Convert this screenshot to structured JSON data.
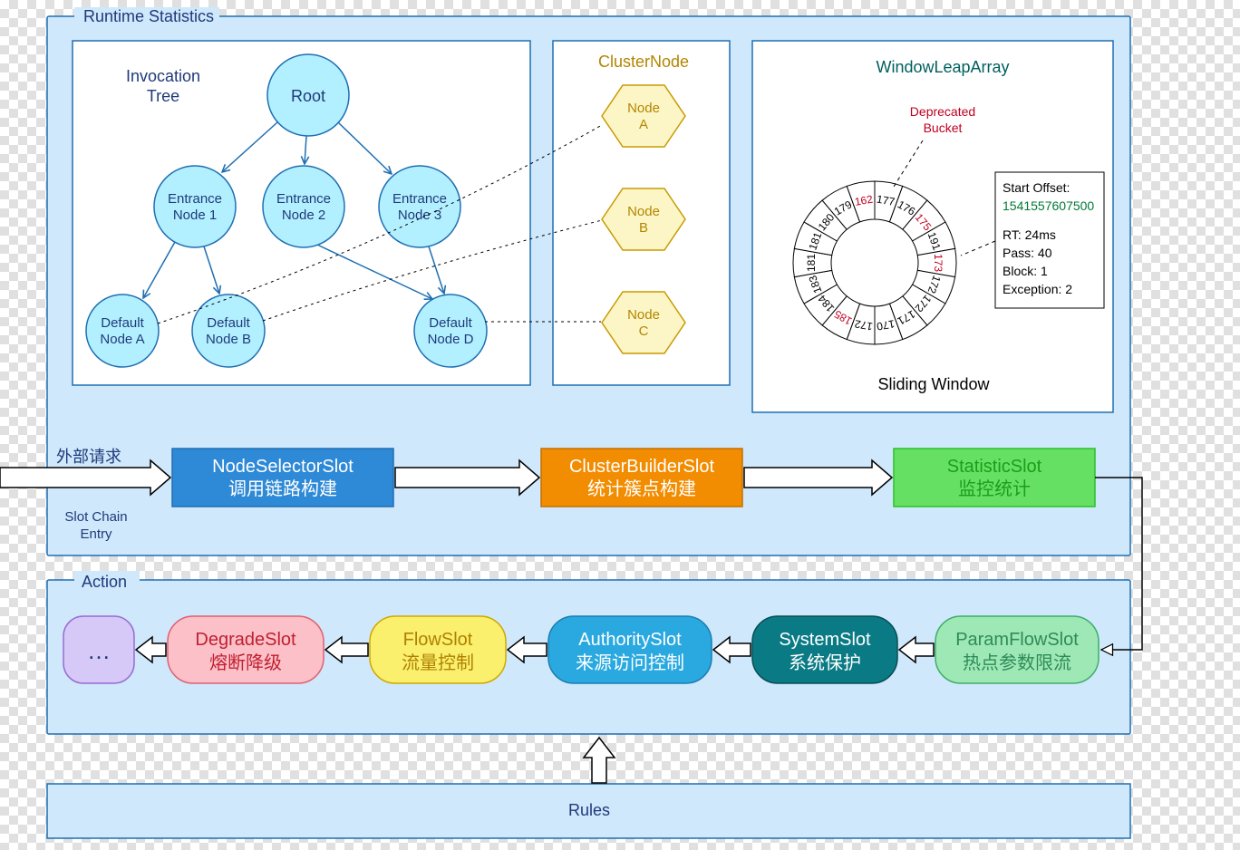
{
  "colors": {
    "panel_fill": "#cfe8fc",
    "panel_stroke": "#1f6fb2",
    "white": "#ffffff",
    "black": "#000000",
    "dark_blue_text": "#1f3a7a",
    "tree_node_fill": "#b3f0ff",
    "tree_node_stroke": "#1f6fb2",
    "hex_fill": "#fcf6c7",
    "hex_stroke": "#c99a00",
    "hex_text": "#b38600",
    "teal_text": "#005f5f",
    "red_text": "#c00020",
    "green_text": "#007a33",
    "slot1_fill": "#2e89d6",
    "slot1_stroke": "#1f6fb2",
    "slot1_text": "#ffffff",
    "slot2_fill": "#f28c00",
    "slot2_stroke": "#c66f00",
    "slot2_text": "#ffffff",
    "slot3_fill": "#66e063",
    "slot3_stroke": "#2bbf2b",
    "slot3_text": "#1a9e1a",
    "pill_more_fill": "#d6c9f7",
    "pill_more_stroke": "#9a6bd1",
    "pill_more_text": "#1f3a7a",
    "pill_degrade_fill": "#fbc0c8",
    "pill_degrade_stroke": "#e06070",
    "pill_degrade_text": "#c02030",
    "pill_flow_fill": "#faf06e",
    "pill_flow_stroke": "#cfa700",
    "pill_flow_text": "#b08000",
    "pill_auth_fill": "#2aa9e0",
    "pill_auth_stroke": "#1b7db0",
    "pill_auth_text": "#ffffff",
    "pill_sys_fill": "#0a7b85",
    "pill_sys_stroke": "#064e55",
    "pill_sys_text": "#ffffff",
    "pill_param_fill": "#9ee8b6",
    "pill_param_stroke": "#3fae69",
    "pill_param_text": "#2e8b57",
    "rules_fill": "#cfe8fc",
    "rules_stroke": "#1f6fb2"
  },
  "runtime": {
    "title": "Runtime Statistics",
    "tree": {
      "title1": "Invocation",
      "title2": "Tree",
      "root": "Root",
      "entrance": [
        {
          "l1": "Entrance",
          "l2": "Node 1"
        },
        {
          "l1": "Entrance",
          "l2": "Node 2"
        },
        {
          "l1": "Entrance",
          "l2": "Node 3"
        }
      ],
      "defaults": [
        {
          "l1": "Default",
          "l2": "Node A"
        },
        {
          "l1": "Default",
          "l2": "Node B"
        },
        {
          "l1": "Default",
          "l2": "Node D"
        }
      ]
    },
    "cluster": {
      "title": "ClusterNode",
      "nodes": [
        {
          "l1": "Node",
          "l2": "A"
        },
        {
          "l1": "Node",
          "l2": "B"
        },
        {
          "l1": "Node",
          "l2": "C"
        }
      ]
    },
    "window": {
      "title": "WindowLeapArray",
      "dep1": "Deprecated",
      "dep2": "Bucket",
      "info_title": "Start Offset:",
      "info_value": "1541557607500",
      "info_rt": "RT: 24ms",
      "info_pass": "Pass: 40",
      "info_block": "Block: 1",
      "info_exc": "Exception: 2",
      "footer": "Sliding Window",
      "buckets": [
        {
          "label": "177",
          "deprecated": false
        },
        {
          "label": "176",
          "deprecated": false
        },
        {
          "label": "175",
          "deprecated": true
        },
        {
          "label": "191",
          "deprecated": false
        },
        {
          "label": "173",
          "deprecated": true
        },
        {
          "label": "172",
          "deprecated": false
        },
        {
          "label": "172",
          "deprecated": false
        },
        {
          "label": "171",
          "deprecated": false
        },
        {
          "label": "170",
          "deprecated": false
        },
        {
          "label": "172",
          "deprecated": false
        },
        {
          "label": "185",
          "deprecated": true
        },
        {
          "label": "184",
          "deprecated": false
        },
        {
          "label": "183",
          "deprecated": false
        },
        {
          "label": "181",
          "deprecated": false
        },
        {
          "label": "181",
          "deprecated": false
        },
        {
          "label": "180",
          "deprecated": false
        },
        {
          "label": "179",
          "deprecated": false
        },
        {
          "label": "162",
          "deprecated": true
        }
      ]
    }
  },
  "flow": {
    "ext_req": "外部请求",
    "entry1": "Slot Chain",
    "entry2": "Entry",
    "slots": [
      {
        "t1": "NodeSelectorSlot",
        "t2": "调用链路构建"
      },
      {
        "t1": "ClusterBuilderSlot",
        "t2": "统计簇点构建"
      },
      {
        "t1": "StatisticSlot",
        "t2": "监控统计"
      }
    ]
  },
  "action": {
    "title": "Action",
    "more": "…",
    "pills": [
      {
        "t1": "DegradeSlot",
        "t2": "熔断降级"
      },
      {
        "t1": "FlowSlot",
        "t2": "流量控制"
      },
      {
        "t1": "AuthoritySlot",
        "t2": "来源访问控制"
      },
      {
        "t1": "SystemSlot",
        "t2": "系统保护"
      },
      {
        "t1": "ParamFlowSlot",
        "t2": "热点参数限流"
      }
    ]
  },
  "rules": {
    "title": "Rules"
  }
}
